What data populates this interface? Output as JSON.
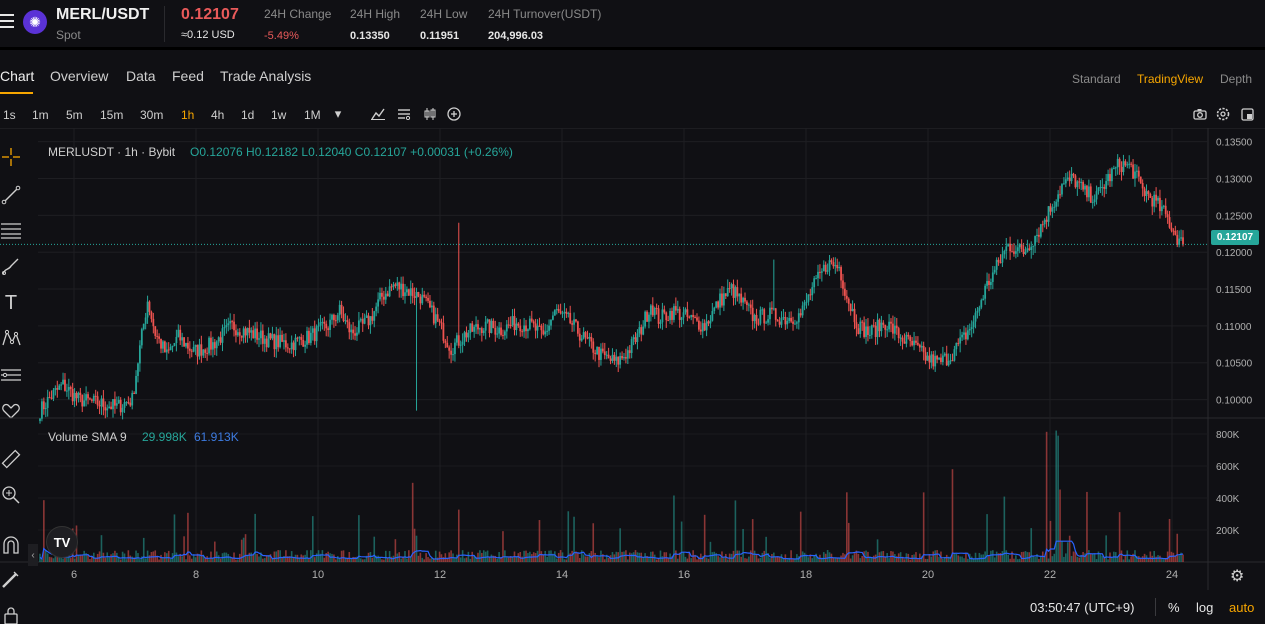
{
  "header": {
    "pair": "MERL/USDT",
    "market_type": "Spot",
    "last_price": "0.12107",
    "usd_price": "≈0.12 USD",
    "stats": [
      {
        "label": "24H Change",
        "value": "-5.49%"
      },
      {
        "label": "24H High",
        "value": "0.13350"
      },
      {
        "label": "24H Low",
        "value": "0.11951"
      },
      {
        "label": "24H Turnover(USDT)",
        "value": "204,996.03"
      }
    ]
  },
  "tabs": [
    "Chart",
    "Overview",
    "Data",
    "Feed",
    "Trade Analysis"
  ],
  "views": [
    "Standard",
    "TradingView",
    "Depth"
  ],
  "active_view": "TradingView",
  "timeframes": [
    "1s",
    "1m",
    "5m",
    "15m",
    "30m",
    "1h",
    "4h",
    "1d",
    "1w",
    "1M"
  ],
  "active_timeframe": "1h",
  "legend": {
    "symbol": "MERLUSDT · 1h · Bybit",
    "ohlc": "O0.12076  H0.12182  L0.12040  C0.12107  +0.00031 (+0.26%)"
  },
  "volume_legend": {
    "title": "Volume SMA 9",
    "value1": "29.998K",
    "value2": "61.913K"
  },
  "price_axis": [
    "0.13500",
    "0.13000",
    "0.12500",
    "0.12000",
    "0.11500",
    "0.11000",
    "0.10500",
    "0.10000"
  ],
  "price_tag": "0.12107",
  "volume_axis": [
    "800K",
    "600K",
    "400K",
    "200K"
  ],
  "date_axis": [
    "6",
    "8",
    "10",
    "12",
    "14",
    "16",
    "18",
    "20",
    "22",
    "24"
  ],
  "bottom_bar": {
    "time": "03:50:47 (UTC+9)",
    "percent": "%",
    "log": "log",
    "auto": "auto"
  },
  "colors": {
    "up": "#26a69a",
    "down": "#ef5350",
    "accent": "#f7a600",
    "background": "#101014",
    "sma": "#2962ff"
  },
  "chart_data": {
    "type": "candlestick",
    "title": "MERLUSDT · 1h · Bybit",
    "price_range": [
      0.0975,
      0.1355
    ],
    "x_ticks": [
      "6",
      "8",
      "10",
      "12",
      "14",
      "16",
      "18",
      "20",
      "22",
      "24"
    ],
    "close_path": [
      [
        0,
        0.0985
      ],
      [
        6,
        0.1005
      ],
      [
        12,
        0.102
      ],
      [
        20,
        0.1
      ],
      [
        30,
        0.0995
      ],
      [
        40,
        0.099
      ],
      [
        48,
        0.1
      ],
      [
        52,
        0.107
      ],
      [
        56,
        0.1135
      ],
      [
        60,
        0.109
      ],
      [
        66,
        0.106
      ],
      [
        72,
        0.1085
      ],
      [
        80,
        0.1065
      ],
      [
        90,
        0.1075
      ],
      [
        100,
        0.11
      ],
      [
        110,
        0.109
      ],
      [
        120,
        0.108
      ],
      [
        130,
        0.1075
      ],
      [
        140,
        0.1085
      ],
      [
        150,
        0.11
      ],
      [
        156,
        0.112
      ],
      [
        162,
        0.109
      ],
      [
        168,
        0.11
      ],
      [
        172,
        0.111
      ],
      [
        178,
        0.114
      ],
      [
        184,
        0.1155
      ],
      [
        190,
        0.115
      ],
      [
        198,
        0.114
      ],
      [
        206,
        0.111
      ],
      [
        214,
        0.107
      ],
      [
        222,
        0.109
      ],
      [
        230,
        0.11
      ],
      [
        240,
        0.1095
      ],
      [
        248,
        0.1105
      ],
      [
        256,
        0.11
      ],
      [
        262,
        0.1085
      ],
      [
        268,
        0.112
      ],
      [
        276,
        0.1105
      ],
      [
        284,
        0.108
      ],
      [
        292,
        0.106
      ],
      [
        300,
        0.105
      ],
      [
        306,
        0.1065
      ],
      [
        312,
        0.109
      ],
      [
        318,
        0.113
      ],
      [
        322,
        0.111
      ],
      [
        330,
        0.112
      ],
      [
        338,
        0.111
      ],
      [
        346,
        0.11
      ],
      [
        354,
        0.1135
      ],
      [
        360,
        0.115
      ],
      [
        366,
        0.113
      ],
      [
        372,
        0.111
      ],
      [
        380,
        0.1115
      ],
      [
        388,
        0.111
      ],
      [
        396,
        0.1115
      ],
      [
        402,
        0.115
      ],
      [
        410,
        0.1185
      ],
      [
        416,
        0.118
      ],
      [
        420,
        0.114
      ],
      [
        426,
        0.11
      ],
      [
        432,
        0.109
      ],
      [
        440,
        0.1105
      ],
      [
        448,
        0.1085
      ],
      [
        456,
        0.107
      ],
      [
        462,
        0.1055
      ],
      [
        468,
        0.105
      ],
      [
        474,
        0.106
      ],
      [
        480,
        0.108
      ],
      [
        486,
        0.1105
      ],
      [
        492,
        0.115
      ],
      [
        498,
        0.118
      ],
      [
        504,
        0.121
      ],
      [
        512,
        0.12
      ],
      [
        520,
        0.123
      ],
      [
        526,
        0.126
      ],
      [
        532,
        0.129
      ],
      [
        538,
        0.13
      ],
      [
        544,
        0.128
      ],
      [
        550,
        0.1275
      ],
      [
        556,
        0.13
      ],
      [
        562,
        0.132
      ],
      [
        568,
        0.1315
      ],
      [
        574,
        0.1285
      ],
      [
        580,
        0.127
      ],
      [
        586,
        0.125
      ],
      [
        592,
        0.122
      ],
      [
        595,
        0.1211
      ]
    ],
    "volume_sma_range": [
      20000,
      130000
    ]
  }
}
